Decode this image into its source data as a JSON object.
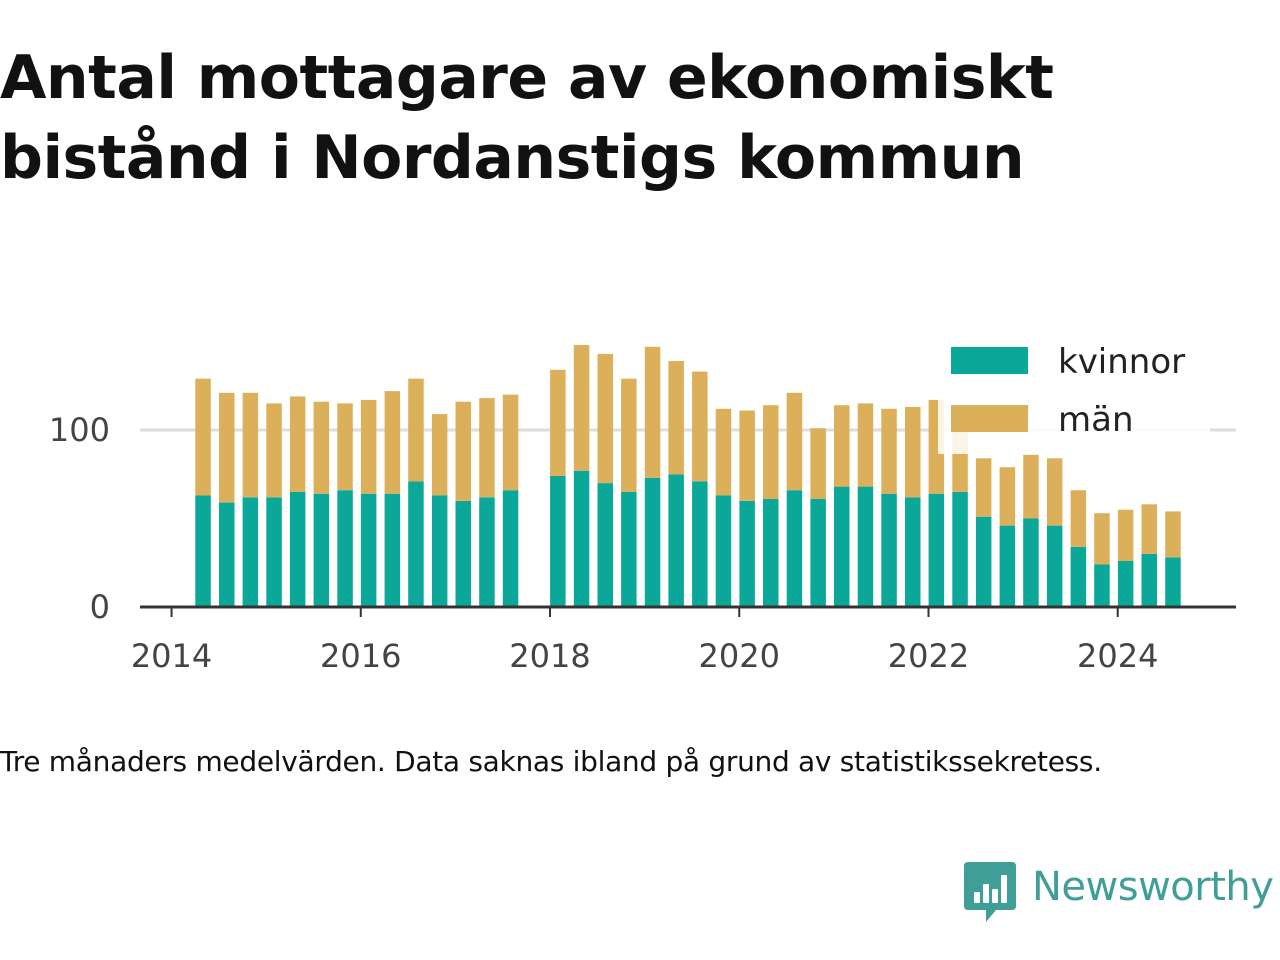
{
  "title_lines": [
    "Antal mottagare av ekonomiskt",
    "bistånd i Nordanstigs kommun"
  ],
  "caption": "Tre månaders medelvärden. Data saknas ibland på grund av statistikssekretess.",
  "brand": {
    "name": "Newsworthy",
    "icon": "chat-bar-chart-icon",
    "color": "#3f9e97"
  },
  "chart_data": {
    "type": "bar",
    "stacked": true,
    "x_type": "date",
    "x": [
      "2014-05",
      "2014-08",
      "2014-11",
      "2015-02",
      "2015-05",
      "2015-08",
      "2015-11",
      "2016-02",
      "2016-05",
      "2016-08",
      "2016-11",
      "2017-02",
      "2017-05",
      "2017-08",
      "2017-11",
      "2018-02",
      "2018-05",
      "2018-08",
      "2018-11",
      "2019-02",
      "2019-05",
      "2019-08",
      "2019-11",
      "2020-02",
      "2020-05",
      "2020-08",
      "2020-11",
      "2021-02",
      "2021-05",
      "2021-08",
      "2021-11",
      "2022-02",
      "2022-05",
      "2022-08",
      "2022-11",
      "2023-02",
      "2023-05",
      "2023-08",
      "2023-11",
      "2024-02",
      "2024-05",
      "2024-08"
    ],
    "series": [
      {
        "name": "kvinnor",
        "color": "#0ba89a",
        "values": [
          63,
          59,
          62,
          62,
          65,
          64,
          66,
          64,
          64,
          71,
          63,
          60,
          62,
          66,
          null,
          74,
          77,
          70,
          65,
          73,
          75,
          71,
          63,
          60,
          61,
          66,
          61,
          68,
          68,
          64,
          62,
          64,
          65,
          51,
          46,
          50,
          46,
          34,
          24,
          26,
          30,
          28
        ]
      },
      {
        "name": "män",
        "color": "#dcb05b",
        "values": [
          66,
          62,
          59,
          53,
          54,
          52,
          49,
          53,
          58,
          58,
          46,
          56,
          56,
          54,
          null,
          60,
          71,
          73,
          64,
          74,
          64,
          62,
          49,
          51,
          53,
          55,
          40,
          46,
          47,
          48,
          51,
          53,
          49,
          33,
          33,
          36,
          38,
          32,
          29,
          29,
          28,
          26
        ]
      }
    ],
    "ylim": [
      0,
      150
    ],
    "yticks": [
      0,
      100
    ],
    "xticks": [
      "2014",
      "2016",
      "2018",
      "2020",
      "2022",
      "2024"
    ],
    "xlim": [
      "2013-09",
      "2025-04"
    ],
    "grid": "horizontal",
    "legend_position": "top-right"
  }
}
